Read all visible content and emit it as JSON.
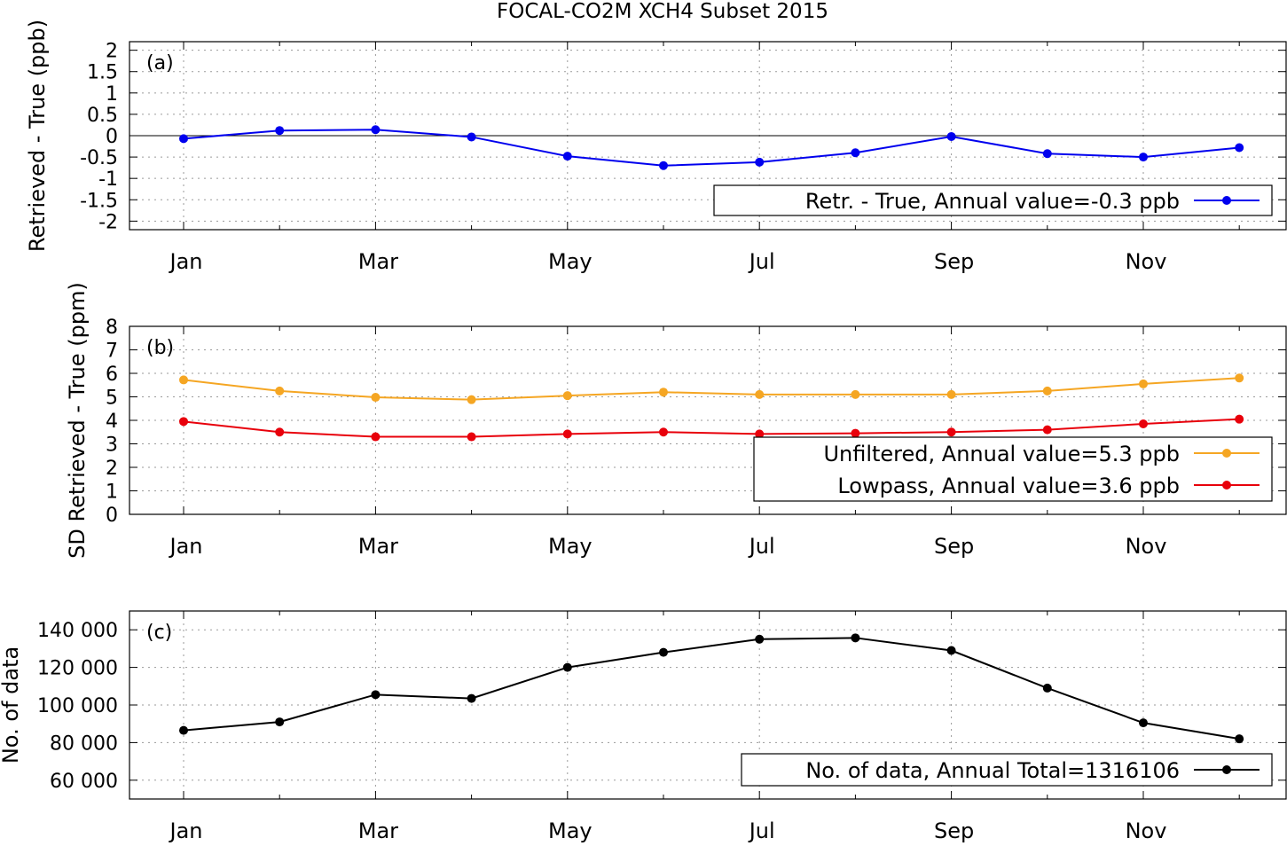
{
  "title": "FOCAL-CO2M XCH4 Subset 2015",
  "colors": {
    "blue": "#0000ee",
    "orange": "#f5a623",
    "red": "#e8000b",
    "black": "#000000"
  },
  "chart_data": [
    {
      "type": "line",
      "panel_label": "(a)",
      "ylabel": "Retrieved - True (ppb)",
      "x": [
        1,
        2,
        3,
        4,
        5,
        6,
        7,
        8,
        9,
        10,
        11,
        12
      ],
      "x_tick_labels": [
        "Jan",
        "Mar",
        "May",
        "Jul",
        "Sep",
        "Nov"
      ],
      "ylim": [
        -2.2,
        2.2
      ],
      "y_ticks": [
        2,
        1.5,
        1,
        0.5,
        0,
        -0.5,
        -1,
        -1.5,
        -2
      ],
      "y_tick_labels": [
        "2",
        "1.5",
        "1",
        "0.5",
        "0",
        "-0.5",
        "-1",
        "-1.5",
        "-2"
      ],
      "zero_line": true,
      "grid": true,
      "legend_position": "bottom-right",
      "series": [
        {
          "name": "Retr. - True, Annual value=-0.3 ppb",
          "color": "#0000ee",
          "values": [
            -0.07,
            0.12,
            0.14,
            -0.03,
            -0.48,
            -0.7,
            -0.62,
            -0.4,
            -0.02,
            -0.42,
            -0.5,
            -0.28
          ]
        }
      ]
    },
    {
      "type": "line",
      "panel_label": "(b)",
      "ylabel": "SD Retrieved - True (ppm)",
      "x": [
        1,
        2,
        3,
        4,
        5,
        6,
        7,
        8,
        9,
        10,
        11,
        12
      ],
      "x_tick_labels": [
        "Jan",
        "Mar",
        "May",
        "Jul",
        "Sep",
        "Nov"
      ],
      "ylim": [
        0,
        8
      ],
      "y_ticks": [
        8,
        7,
        6,
        5,
        4,
        3,
        2,
        1,
        0
      ],
      "y_tick_labels": [
        "8",
        "7",
        "6",
        "5",
        "4",
        "3",
        "2",
        "1",
        "0"
      ],
      "grid": true,
      "legend_position": "bottom-right",
      "series": [
        {
          "name": "Unfiltered, Annual value=5.3 ppb",
          "color": "#f5a623",
          "values": [
            5.72,
            5.25,
            4.98,
            4.88,
            5.05,
            5.2,
            5.1,
            5.1,
            5.1,
            5.25,
            5.55,
            5.8
          ]
        },
        {
          "name": "Lowpass, Annual value=3.6 ppb",
          "color": "#e8000b",
          "values": [
            3.95,
            3.5,
            3.3,
            3.3,
            3.42,
            3.5,
            3.42,
            3.45,
            3.5,
            3.6,
            3.85,
            4.05
          ]
        }
      ]
    },
    {
      "type": "line",
      "panel_label": "(c)",
      "ylabel": "No. of data",
      "x": [
        1,
        2,
        3,
        4,
        5,
        6,
        7,
        8,
        9,
        10,
        11,
        12
      ],
      "x_tick_labels": [
        "Jan",
        "Mar",
        "May",
        "Jul",
        "Sep",
        "Nov"
      ],
      "ylim": [
        50000,
        150000
      ],
      "y_ticks": [
        140000,
        120000,
        100000,
        80000,
        60000
      ],
      "y_tick_labels": [
        "140 000",
        "120 000",
        "100 000",
        "80 000",
        "60 000"
      ],
      "grid": true,
      "legend_position": "bottom-right",
      "series": [
        {
          "name": "No. of data, Annual Total=1316106",
          "color": "#000000",
          "values": [
            86500,
            91000,
            105500,
            103500,
            120000,
            128000,
            135000,
            135700,
            129000,
            109000,
            90500,
            82000
          ]
        }
      ]
    }
  ]
}
